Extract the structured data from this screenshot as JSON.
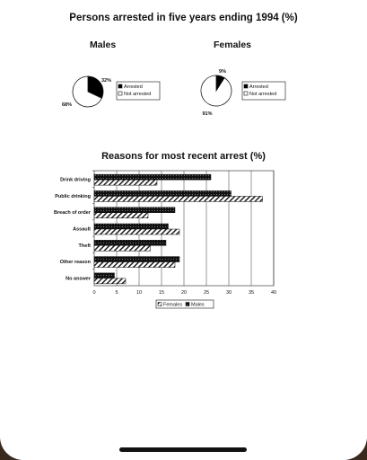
{
  "chart_data": [
    {
      "type": "pie",
      "title": "Persons arrested in five years ending 1994 (%)",
      "subtitle": "Males",
      "slices": [
        {
          "label": "Arrested",
          "value": 32,
          "value_label": "32%",
          "color": "#000000"
        },
        {
          "label": "Not arrested",
          "value": 68,
          "value_label": "68%",
          "color": "#ffffff"
        }
      ],
      "legend": [
        "Arrested",
        "Not arrested"
      ],
      "legend_position": "right"
    },
    {
      "type": "pie",
      "subtitle": "Females",
      "slices": [
        {
          "label": "Arrested",
          "value": 9,
          "value_label": "9%",
          "color": "#000000"
        },
        {
          "label": "Not arrested",
          "value": 91,
          "value_label": "91%",
          "color": "#ffffff"
        }
      ],
      "legend": [
        "Arrested",
        "Not arrested"
      ],
      "legend_position": "right"
    },
    {
      "type": "bar",
      "orientation": "horizontal",
      "title": "Reasons for most recent arrest (%)",
      "categories": [
        "Drink driving",
        "Public drinking",
        "Breach of order",
        "Assault",
        "Theft",
        "Other reason",
        "No answer"
      ],
      "series": [
        {
          "name": "Males",
          "values": [
            26,
            30.5,
            18,
            16.5,
            16,
            19,
            4.5
          ],
          "pattern": "dark-dotted"
        },
        {
          "name": "Females",
          "values": [
            14,
            37.5,
            12,
            19,
            12.5,
            18,
            7
          ],
          "pattern": "hatched"
        }
      ],
      "xlim": [
        0,
        40
      ],
      "xticks": [
        0,
        5,
        10,
        15,
        20,
        25,
        30,
        35,
        40
      ],
      "grid": true,
      "legend_position": "bottom",
      "legend_order": [
        "Females",
        "Males"
      ]
    }
  ]
}
